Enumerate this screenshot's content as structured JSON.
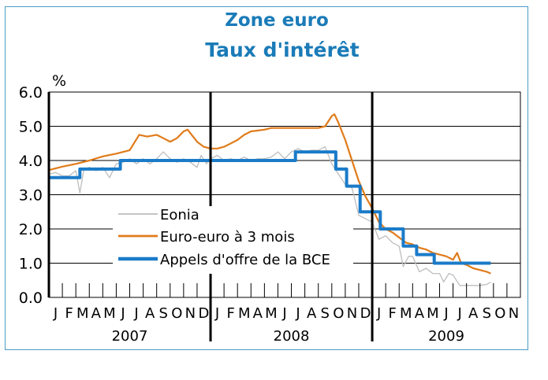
{
  "chart_data": {
    "type": "line",
    "title": "Zone euro",
    "subtitle": "Taux d'intérêt",
    "ylabel": "%",
    "ylim": [
      0,
      6
    ],
    "yticks": [
      "0.0",
      "1.0",
      "2.0",
      "3.0",
      "4.0",
      "5.0",
      "6.0"
    ],
    "grid": true,
    "legend_position": "lower-left",
    "month_labels": [
      "J",
      "F",
      "M",
      "A",
      "M",
      "J",
      "J",
      "A",
      "S",
      "O",
      "N",
      "D",
      "J",
      "F",
      "M",
      "A",
      "M",
      "J",
      "J",
      "A",
      "S",
      "O",
      "N",
      "D",
      "J",
      "F",
      "M",
      "A",
      "M",
      "J",
      "J",
      "A",
      "S",
      "O",
      "N"
    ],
    "year_labels": [
      "2007",
      "2008",
      "2009"
    ],
    "series": [
      {
        "name": "Eonia",
        "color": "#bdbdbd",
        "points": [
          [
            0,
            3.6
          ],
          [
            0.5,
            3.65
          ],
          [
            1,
            3.55
          ],
          [
            1.5,
            3.55
          ],
          [
            2,
            3.7
          ],
          [
            2.3,
            3.05
          ],
          [
            2.6,
            3.75
          ],
          [
            3,
            3.8
          ],
          [
            3.5,
            3.7
          ],
          [
            4,
            3.8
          ],
          [
            4.5,
            3.5
          ],
          [
            5,
            3.9
          ],
          [
            5.5,
            3.95
          ],
          [
            6,
            4.05
          ],
          [
            6.5,
            3.9
          ],
          [
            7,
            4.05
          ],
          [
            7.5,
            3.9
          ],
          [
            8,
            4.05
          ],
          [
            8.5,
            4.25
          ],
          [
            9,
            4.05
          ],
          [
            9.5,
            3.95
          ],
          [
            10,
            4.05
          ],
          [
            10.5,
            3.95
          ],
          [
            11,
            3.8
          ],
          [
            11.3,
            4.15
          ],
          [
            11.7,
            3.9
          ],
          [
            12,
            4.05
          ],
          [
            12.5,
            4.15
          ],
          [
            13,
            4.0
          ],
          [
            13.5,
            4.05
          ],
          [
            14,
            4.0
          ],
          [
            14.5,
            4.1
          ],
          [
            15,
            4.0
          ],
          [
            15.5,
            4.05
          ],
          [
            16,
            4.05
          ],
          [
            16.5,
            4.1
          ],
          [
            17,
            4.25
          ],
          [
            17.5,
            4.05
          ],
          [
            18,
            4.25
          ],
          [
            18.5,
            4.35
          ],
          [
            19,
            4.25
          ],
          [
            19.5,
            4.3
          ],
          [
            20,
            4.3
          ],
          [
            20.5,
            4.4
          ],
          [
            21,
            3.9
          ],
          [
            21.5,
            3.6
          ],
          [
            22,
            3.3
          ],
          [
            22.5,
            3.2
          ],
          [
            23,
            2.4
          ],
          [
            23.5,
            2.3
          ],
          [
            24,
            2.2
          ],
          [
            24.5,
            1.7
          ],
          [
            25,
            1.8
          ],
          [
            25.5,
            1.6
          ],
          [
            26,
            1.5
          ],
          [
            26.3,
            0.9
          ],
          [
            26.7,
            1.2
          ],
          [
            27,
            1.2
          ],
          [
            27.5,
            0.75
          ],
          [
            28,
            0.85
          ],
          [
            28.5,
            0.7
          ],
          [
            29,
            0.7
          ],
          [
            29.3,
            0.45
          ],
          [
            29.7,
            0.7
          ],
          [
            30,
            0.65
          ],
          [
            30.5,
            0.35
          ],
          [
            31,
            0.35
          ],
          [
            31.5,
            0.35
          ],
          [
            32,
            0.35
          ],
          [
            32.5,
            0.38
          ],
          [
            32.8,
            0.45
          ]
        ]
      },
      {
        "name": "Euro-euro à 3 mois",
        "color": "#e07b1a",
        "points": [
          [
            0,
            3.72
          ],
          [
            1,
            3.82
          ],
          [
            2,
            3.9
          ],
          [
            3,
            4.0
          ],
          [
            4,
            4.12
          ],
          [
            5,
            4.2
          ],
          [
            6,
            4.3
          ],
          [
            6.7,
            4.75
          ],
          [
            7.3,
            4.7
          ],
          [
            8,
            4.75
          ],
          [
            8.5,
            4.65
          ],
          [
            9,
            4.55
          ],
          [
            9.5,
            4.65
          ],
          [
            10,
            4.85
          ],
          [
            10.3,
            4.9
          ],
          [
            10.6,
            4.75
          ],
          [
            11,
            4.55
          ],
          [
            11.5,
            4.4
          ],
          [
            12,
            4.35
          ],
          [
            12.5,
            4.35
          ],
          [
            13,
            4.4
          ],
          [
            13.5,
            4.5
          ],
          [
            14,
            4.6
          ],
          [
            14.5,
            4.75
          ],
          [
            15,
            4.85
          ],
          [
            16,
            4.9
          ],
          [
            16.5,
            4.95
          ],
          [
            17,
            4.95
          ],
          [
            18,
            4.95
          ],
          [
            19,
            4.95
          ],
          [
            20,
            4.95
          ],
          [
            20.5,
            5.0
          ],
          [
            21,
            5.3
          ],
          [
            21.2,
            5.35
          ],
          [
            21.5,
            5.1
          ],
          [
            22,
            4.6
          ],
          [
            22.5,
            4.0
          ],
          [
            23,
            3.4
          ],
          [
            23.5,
            2.95
          ],
          [
            24,
            2.6
          ],
          [
            24.5,
            2.2
          ],
          [
            25,
            2.0
          ],
          [
            25.5,
            1.9
          ],
          [
            26,
            1.75
          ],
          [
            26.5,
            1.6
          ],
          [
            27,
            1.55
          ],
          [
            27.5,
            1.45
          ],
          [
            28,
            1.4
          ],
          [
            28.5,
            1.3
          ],
          [
            29,
            1.25
          ],
          [
            29.5,
            1.2
          ],
          [
            30,
            1.1
          ],
          [
            30.3,
            1.3
          ],
          [
            30.6,
            1.0
          ],
          [
            31,
            0.95
          ],
          [
            31.5,
            0.85
          ],
          [
            32,
            0.8
          ],
          [
            32.5,
            0.75
          ],
          [
            32.8,
            0.7
          ]
        ]
      },
      {
        "name": "Appels d'offre de la BCE",
        "color": "#1a7bc9",
        "points": [
          [
            0,
            3.5
          ],
          [
            2.3,
            3.5
          ],
          [
            2.3,
            3.75
          ],
          [
            5.3,
            3.75
          ],
          [
            5.3,
            4.0
          ],
          [
            18.3,
            4.0
          ],
          [
            18.3,
            4.25
          ],
          [
            21.3,
            4.25
          ],
          [
            21.3,
            3.75
          ],
          [
            22.1,
            3.75
          ],
          [
            22.1,
            3.25
          ],
          [
            23.1,
            3.25
          ],
          [
            23.1,
            2.5
          ],
          [
            24.6,
            2.5
          ],
          [
            24.6,
            2.0
          ],
          [
            26.3,
            2.0
          ],
          [
            26.3,
            1.5
          ],
          [
            27.3,
            1.5
          ],
          [
            27.3,
            1.25
          ],
          [
            28.6,
            1.25
          ],
          [
            28.6,
            1.0
          ],
          [
            32.8,
            1.0
          ]
        ]
      }
    ]
  }
}
